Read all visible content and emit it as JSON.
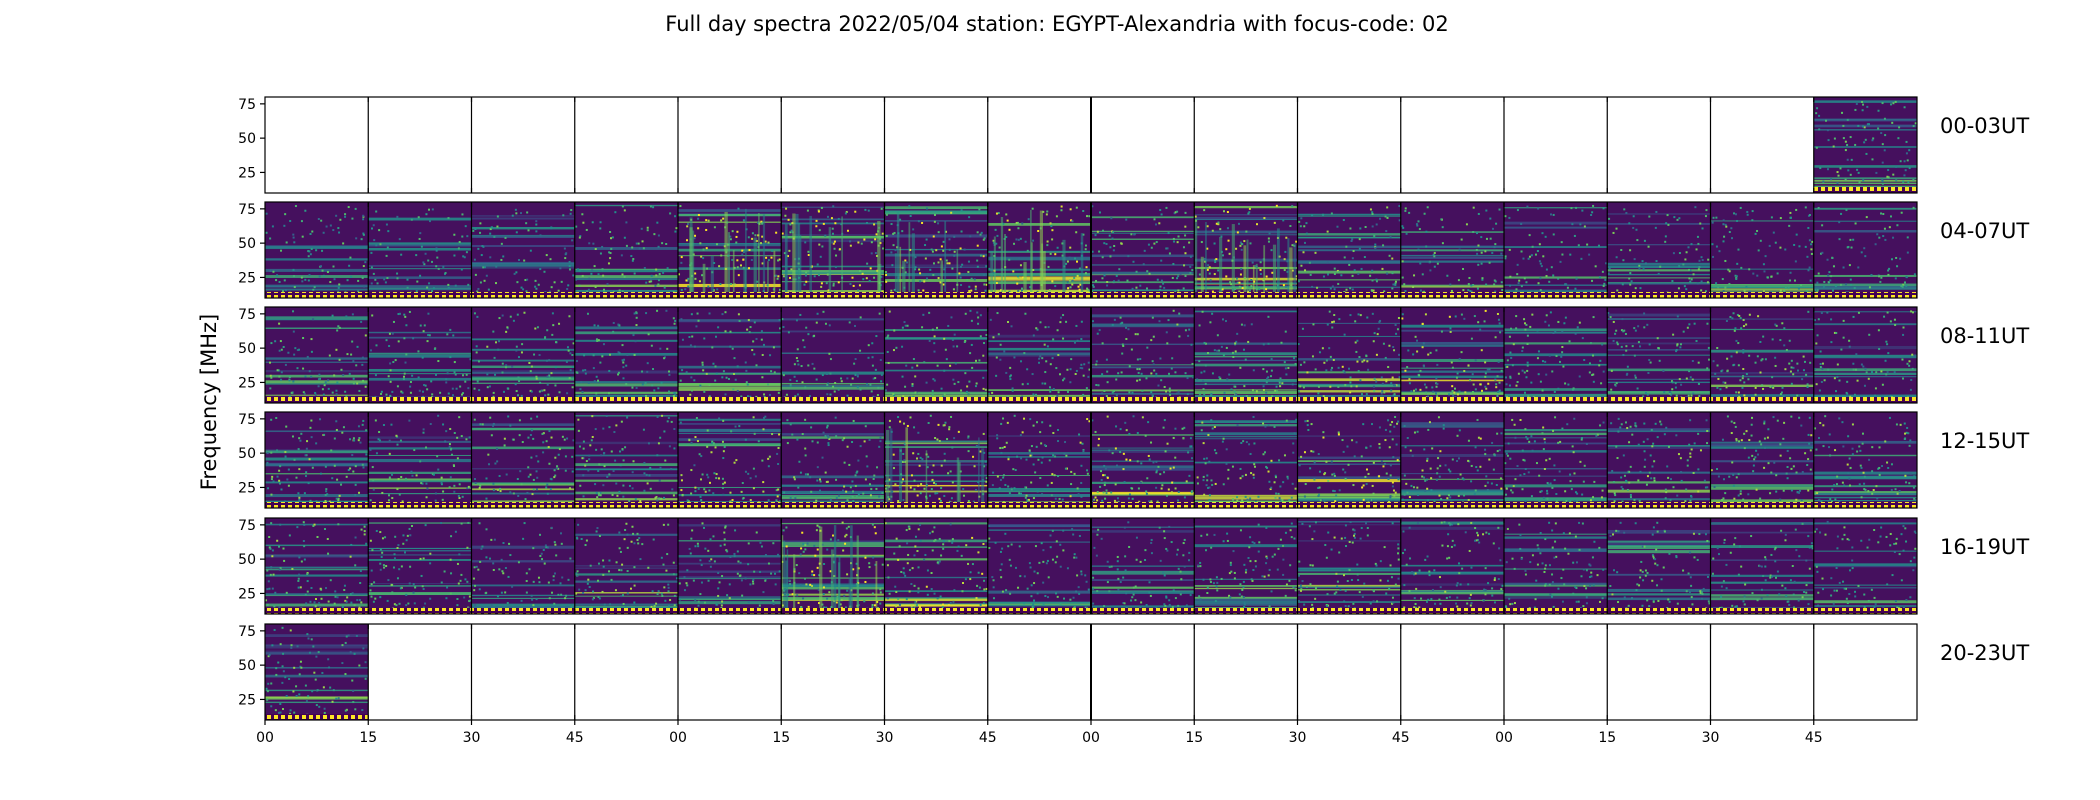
{
  "chart_data": {
    "type": "heatmap",
    "title": "Full day spectra 2022/05/04 station: EGYPT-Alexandria with focus-code: 02",
    "ylabel": "Frequency [MHz]",
    "xlabel": "",
    "ylim": [
      10,
      80
    ],
    "yticks": [
      25,
      50,
      75
    ],
    "xtick_labels": [
      "00",
      "15",
      "30",
      "45",
      "00",
      "15",
      "30",
      "45",
      "00",
      "15",
      "30",
      "45",
      "00",
      "15",
      "30",
      "45"
    ],
    "panels_per_row": 16,
    "panel_minutes": 15,
    "colormap": [
      "#440154",
      "#3b528b",
      "#21918c",
      "#5ec962",
      "#fde725"
    ],
    "rows": [
      {
        "label": "00-03UT",
        "data_panels": [
          15
        ]
      },
      {
        "label": "04-07UT",
        "data_panels": [
          0,
          1,
          2,
          3,
          4,
          5,
          6,
          7,
          8,
          9,
          10,
          11,
          12,
          13,
          14,
          15
        ]
      },
      {
        "label": "08-11UT",
        "data_panels": [
          0,
          1,
          2,
          3,
          4,
          5,
          6,
          7,
          8,
          9,
          10,
          11,
          12,
          13,
          14,
          15
        ]
      },
      {
        "label": "12-15UT",
        "data_panels": [
          0,
          1,
          2,
          3,
          4,
          5,
          6,
          7,
          8,
          9,
          10,
          11,
          12,
          13,
          14,
          15
        ]
      },
      {
        "label": "16-19UT",
        "data_panels": [
          0,
          1,
          2,
          3,
          4,
          5,
          6,
          7,
          8,
          9,
          10,
          11,
          12,
          13,
          14,
          15
        ]
      },
      {
        "label": "20-23UT",
        "data_panels": [
          0
        ]
      }
    ],
    "panel_intensity": [
      [
        0,
        0,
        0,
        0,
        0,
        0,
        0,
        0,
        0,
        0,
        0,
        0,
        0,
        0,
        0,
        0.55
      ],
      [
        0.5,
        0.45,
        0.5,
        0.55,
        0.85,
        0.8,
        0.75,
        0.8,
        0.6,
        0.85,
        0.6,
        0.55,
        0.5,
        0.5,
        0.55,
        0.5
      ],
      [
        0.55,
        0.5,
        0.55,
        0.5,
        0.55,
        0.5,
        0.6,
        0.55,
        0.55,
        0.55,
        0.65,
        0.7,
        0.55,
        0.55,
        0.6,
        0.55
      ],
      [
        0.6,
        0.55,
        0.6,
        0.6,
        0.65,
        0.6,
        0.75,
        0.65,
        0.7,
        0.65,
        0.7,
        0.65,
        0.6,
        0.6,
        0.6,
        0.6
      ],
      [
        0.6,
        0.55,
        0.5,
        0.6,
        0.55,
        0.85,
        0.7,
        0.5,
        0.5,
        0.55,
        0.6,
        0.6,
        0.55,
        0.55,
        0.5,
        0.5
      ],
      [
        0.55,
        0,
        0,
        0,
        0,
        0,
        0,
        0,
        0,
        0,
        0,
        0,
        0,
        0,
        0,
        0
      ]
    ]
  }
}
